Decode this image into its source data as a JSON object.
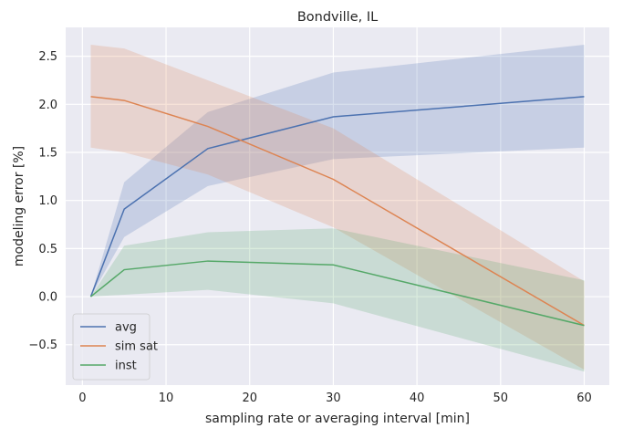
{
  "chart_data": {
    "type": "line",
    "title": "Bondville, IL",
    "xlabel": "sampling rate or averaging interval [min]",
    "ylabel": "modeling error [%]",
    "xlim": [
      -2,
      63
    ],
    "ylim": [
      -0.92,
      2.8
    ],
    "xticks": [
      0,
      10,
      20,
      30,
      40,
      50,
      60
    ],
    "yticks": [
      -0.5,
      0.0,
      0.5,
      1.0,
      1.5,
      2.0,
      2.5
    ],
    "ytick_labels": [
      "−0.5",
      "0.0",
      "0.5",
      "1.0",
      "1.5",
      "2.0",
      "2.5"
    ],
    "grid": true,
    "legend_position": "lower-left",
    "background": "#eaeaf2",
    "x": [
      1,
      5,
      15,
      30,
      60
    ],
    "series": [
      {
        "name": "avg",
        "color": "#4c72b0",
        "values": [
          0.0,
          0.91,
          1.54,
          1.87,
          2.08
        ],
        "lower": [
          0.0,
          0.62,
          1.15,
          1.43,
          1.55
        ],
        "upper": [
          0.0,
          1.19,
          1.92,
          2.33,
          2.62
        ]
      },
      {
        "name": "sim sat",
        "color": "#dd8452",
        "values": [
          2.08,
          2.04,
          1.77,
          1.22,
          -0.3
        ],
        "lower": [
          1.55,
          1.5,
          1.27,
          0.72,
          -0.76
        ],
        "upper": [
          2.62,
          2.58,
          2.25,
          1.75,
          0.16
        ]
      },
      {
        "name": "inst",
        "color": "#55a868",
        "values": [
          0.0,
          0.28,
          0.37,
          0.33,
          -0.3
        ],
        "lower": [
          0.0,
          0.02,
          0.07,
          -0.07,
          -0.78
        ],
        "upper": [
          0.0,
          0.53,
          0.67,
          0.71,
          0.17
        ]
      }
    ]
  }
}
